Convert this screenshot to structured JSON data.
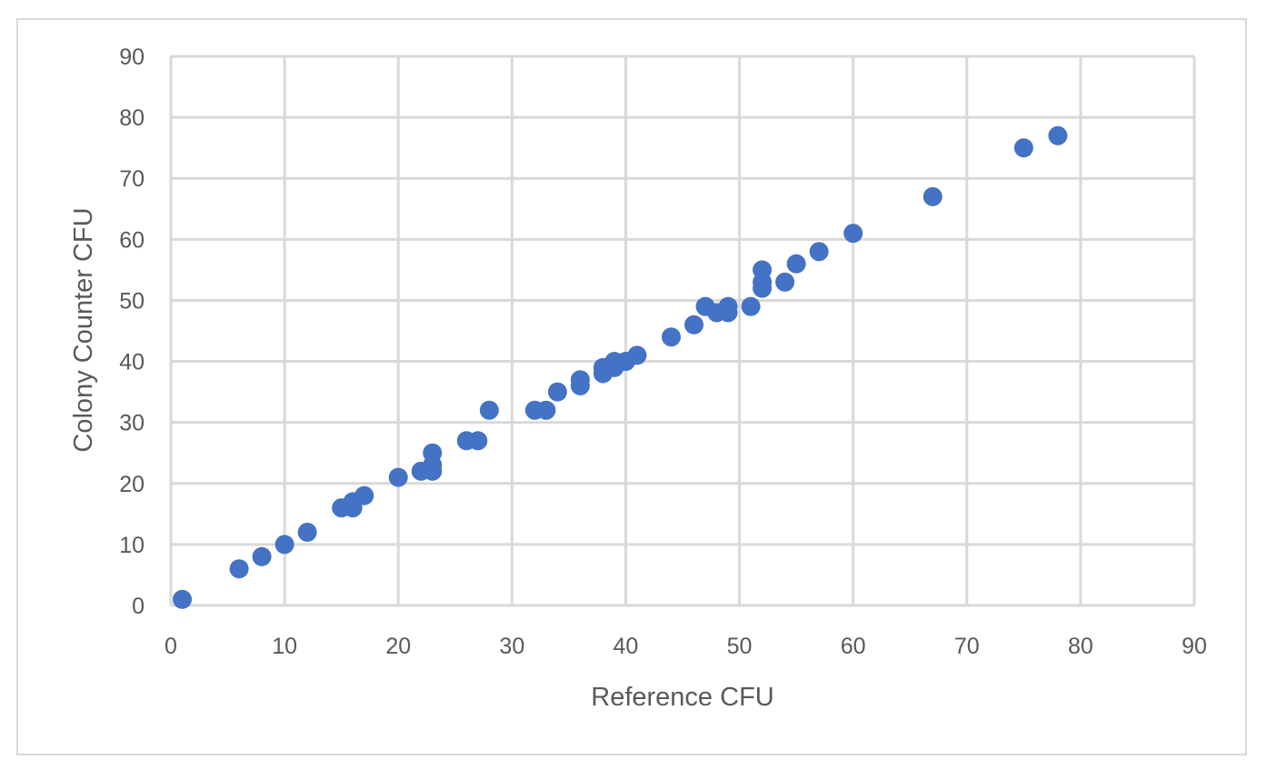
{
  "chart_data": {
    "type": "scatter",
    "title": "",
    "xlabel": "Reference CFU",
    "ylabel": "Colony Counter CFU",
    "xlim": [
      0,
      90
    ],
    "ylim": [
      0,
      90
    ],
    "xticks": [
      0,
      10,
      20,
      30,
      40,
      50,
      60,
      70,
      80,
      90
    ],
    "yticks": [
      0,
      10,
      20,
      30,
      40,
      50,
      60,
      70,
      80,
      90
    ],
    "grid": true,
    "legend": "none",
    "marker_color": "#4472c4",
    "series": [
      {
        "points": [
          [
            1,
            1
          ],
          [
            6,
            6
          ],
          [
            8,
            8
          ],
          [
            10,
            10
          ],
          [
            12,
            12
          ],
          [
            15,
            16
          ],
          [
            16,
            17
          ],
          [
            16,
            16
          ],
          [
            17,
            18
          ],
          [
            20,
            21
          ],
          [
            22,
            22
          ],
          [
            23,
            22
          ],
          [
            23,
            23
          ],
          [
            23,
            25
          ],
          [
            26,
            27
          ],
          [
            27,
            27
          ],
          [
            28,
            32
          ],
          [
            32,
            32
          ],
          [
            33,
            32
          ],
          [
            34,
            35
          ],
          [
            36,
            36
          ],
          [
            36,
            37
          ],
          [
            38,
            38
          ],
          [
            38,
            39
          ],
          [
            39,
            39
          ],
          [
            39,
            40
          ],
          [
            40,
            40
          ],
          [
            41,
            41
          ],
          [
            44,
            44
          ],
          [
            46,
            46
          ],
          [
            47,
            49
          ],
          [
            48,
            48
          ],
          [
            49,
            48
          ],
          [
            49,
            49
          ],
          [
            51,
            49
          ],
          [
            52,
            52
          ],
          [
            52,
            53
          ],
          [
            52,
            55
          ],
          [
            54,
            53
          ],
          [
            55,
            56
          ],
          [
            57,
            58
          ],
          [
            60,
            61
          ],
          [
            67,
            67
          ],
          [
            75,
            75
          ],
          [
            78,
            77
          ]
        ]
      }
    ]
  }
}
